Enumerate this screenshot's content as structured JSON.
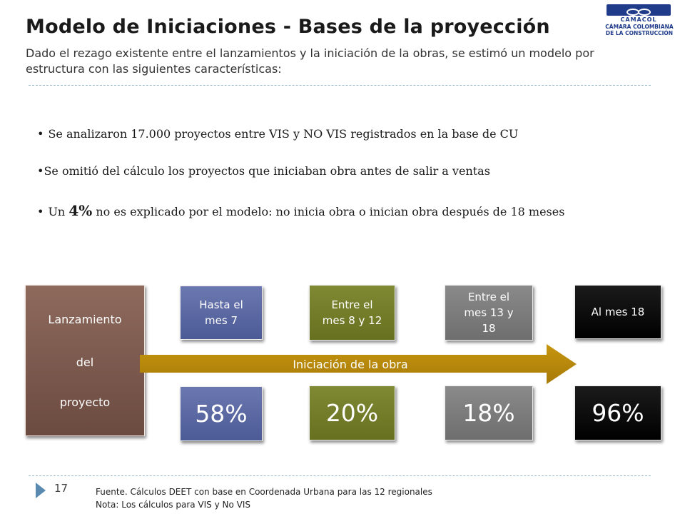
{
  "header": {
    "title": "Modelo de Iniciaciones - Bases de la proyección",
    "subtitle": "Dado el rezago existente entre el lanzamientos y la iniciación de la obras, se estimó un modelo por estructura con las siguientes características:"
  },
  "logo": {
    "name": "CAMACOL",
    "line1": "CÁMARA COLOMBIANA",
    "line2": "DE LA CONSTRUCCIÓN",
    "color": "#1f3b8a"
  },
  "bullets": [
    {
      "dot": "•",
      "pre": "Se analizaron 17.000 proyectos entre VIS y NO VIS registrados en la base de CU"
    },
    {
      "dot": "•",
      "pre": "Se omitió del cálculo los proyectos que iniciaban obra antes de salir a ventas"
    },
    {
      "dot": "•",
      "pre": "Un",
      "highlight": "4%",
      "post": "no es explicado por el modelo: no inicia obra o inician obra después de 18 meses"
    }
  ],
  "diagram": {
    "launch": {
      "line1": "Lanzamiento",
      "line2": "del",
      "line3": "proyecto",
      "color": "#7b5a4e"
    },
    "arrow": {
      "label": "Iniciación de la obra",
      "color": "#b8860b"
    },
    "periods": [
      {
        "lines": [
          "Hasta el",
          "mes 7"
        ],
        "value": "58%",
        "color": "#5a67a3"
      },
      {
        "lines": [
          "Entre el",
          "mes 8 y 12"
        ],
        "value": "20%",
        "color": "#737d28"
      },
      {
        "lines": [
          "Entre el",
          "mes 13 y",
          "18"
        ],
        "value": "18%",
        "color": "#7a7a7a"
      },
      {
        "lines": [
          "Al mes 18"
        ],
        "value": "96%",
        "color": "#0d0d0d"
      }
    ]
  },
  "footer": {
    "page_number": "17",
    "source": "Fuente. Cálculos DEET con base en Coordenada Urbana para las 12 regionales",
    "note": "Nota:  Los cálculos para VIS y No VIS"
  }
}
